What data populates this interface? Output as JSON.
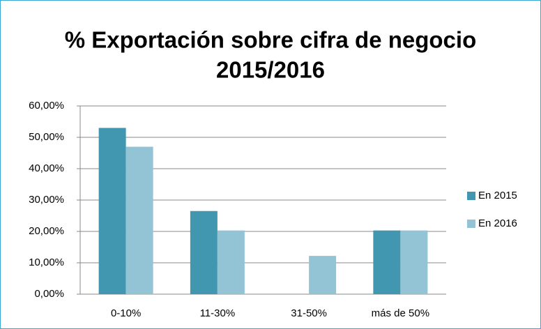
{
  "chart_data": {
    "type": "bar",
    "title": [
      "% Exportación sobre cifra de negocio",
      "2015/2016"
    ],
    "categories": [
      "0-10%",
      "11-30%",
      "31-50%",
      "más de 50%"
    ],
    "series": [
      {
        "name": "En 2015",
        "color": "#4197b0",
        "values": [
          53,
          26.5,
          0,
          20.3
        ]
      },
      {
        "name": "En 2016",
        "color": "#93c4d5",
        "values": [
          47,
          20.3,
          12.2,
          20.3
        ]
      }
    ],
    "ylim": [
      0,
      60
    ],
    "yticks": [
      {
        "value": 0,
        "label": "0,00%"
      },
      {
        "value": 10,
        "label": "10,00%"
      },
      {
        "value": 20,
        "label": "20,00%"
      },
      {
        "value": 30,
        "label": "30,00%"
      },
      {
        "value": 40,
        "label": "40,00%"
      },
      {
        "value": 50,
        "label": "50,00%"
      },
      {
        "value": 60,
        "label": "60,00%"
      }
    ],
    "grid": true,
    "legend": "right"
  }
}
